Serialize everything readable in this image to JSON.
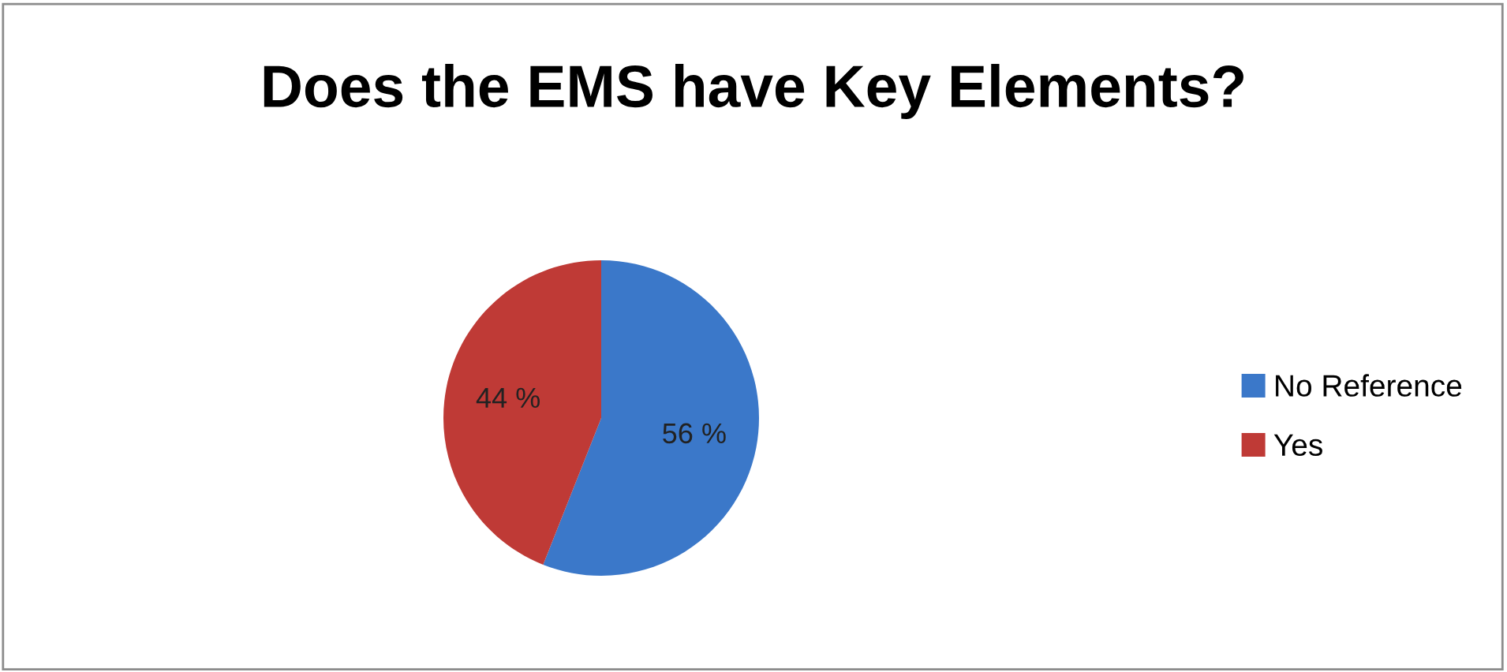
{
  "chart_data": {
    "type": "pie",
    "title": "Does the EMS have Key Elements?",
    "categories": [
      "No Reference",
      "Yes"
    ],
    "values": [
      56,
      44
    ],
    "colors": [
      "#3b78c9",
      "#bf3a36"
    ],
    "value_labels": [
      "56 %",
      "44 %"
    ],
    "legend": "right"
  }
}
